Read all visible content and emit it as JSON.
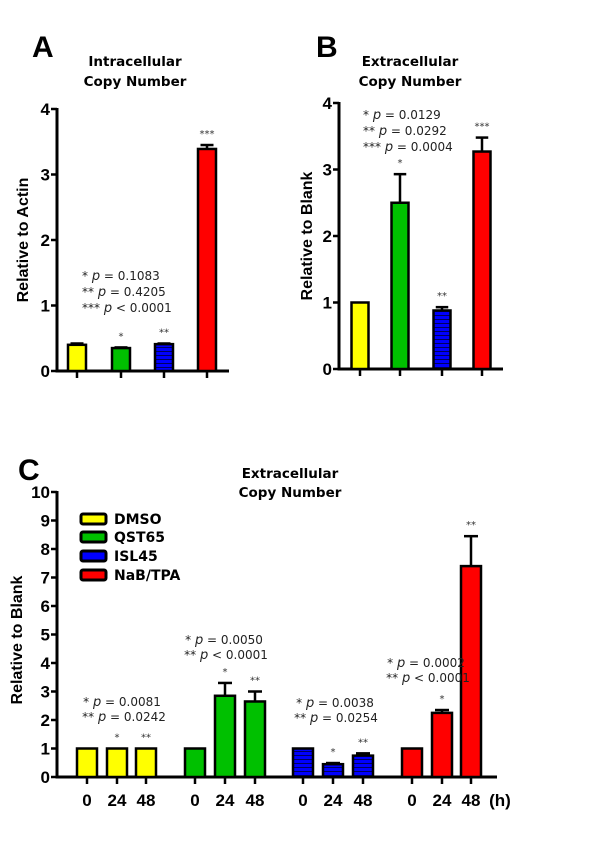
{
  "colors": {
    "DMSO": "#ffff00",
    "QST65": "#00c000",
    "ISL45": "#0000ff",
    "NaB/TPA": "#ff0000"
  },
  "chart_data": [
    {
      "panel": "A",
      "type": "bar",
      "title": [
        "Intracellular",
        "Copy Number"
      ],
      "ylabel": "Relative to Actin",
      "ylim": [
        0,
        4
      ],
      "yticks": [
        "0",
        "1",
        "2",
        "3",
        "4"
      ],
      "bars": [
        {
          "color_key": "DMSO",
          "value": 0.4,
          "error": 0.02,
          "sig": ""
        },
        {
          "color_key": "QST65",
          "value": 0.35,
          "error": 0.01,
          "sig": "*"
        },
        {
          "color_key": "ISL45",
          "value": 0.41,
          "error": 0.01,
          "sig": "**"
        },
        {
          "color_key": "NaB/TPA",
          "value": 3.39,
          "error": 0.06,
          "sig": "***"
        }
      ],
      "annotations": [
        "* p = 0.1083",
        "** p = 0.4205",
        "*** p < 0.0001"
      ]
    },
    {
      "panel": "B",
      "type": "bar",
      "title": [
        "Extracellular",
        "Copy Number"
      ],
      "ylabel": "Relative to Blank",
      "ylim": [
        0,
        4
      ],
      "yticks": [
        "0",
        "1",
        "2",
        "3",
        "4"
      ],
      "bars": [
        {
          "color_key": "DMSO",
          "value": 1.0,
          "error": 0,
          "sig": ""
        },
        {
          "color_key": "QST65",
          "value": 2.5,
          "error": 0.43,
          "sig": "*"
        },
        {
          "color_key": "ISL45",
          "value": 0.88,
          "error": 0.05,
          "sig": "**"
        },
        {
          "color_key": "NaB/TPA",
          "value": 3.27,
          "error": 0.21,
          "sig": "***"
        }
      ],
      "annotations": [
        "* p = 0.0129",
        "** p = 0.0292",
        "*** p = 0.0004"
      ]
    },
    {
      "panel": "C",
      "type": "bar",
      "title": [
        "Extracellular",
        "Copy Number"
      ],
      "ylabel": "Relative to Blank",
      "ylim": [
        0,
        10
      ],
      "yticks": [
        "0",
        "1",
        "2",
        "3",
        "4",
        "5",
        "6",
        "7",
        "8",
        "9",
        "10"
      ],
      "x_tick_labels": [
        "0",
        "24",
        "48"
      ],
      "x_unit": "(h)",
      "legend": [
        "DMSO",
        "QST65",
        "ISL45",
        "NaB/TPA"
      ],
      "legend_position": "top-left",
      "groups": [
        {
          "name": "DMSO",
          "values": [
            1,
            1,
            1
          ],
          "errors": [
            0,
            0,
            0
          ],
          "sig": [
            "",
            "*",
            "**"
          ],
          "annotations": [
            "* p = 0.0081",
            "** p = 0.0242"
          ]
        },
        {
          "name": "QST65",
          "values": [
            1,
            2.85,
            2.65
          ],
          "errors": [
            0,
            0.45,
            0.35
          ],
          "sig": [
            "",
            "*",
            "**"
          ],
          "annotations": [
            "* p = 0.0050",
            "** p < 0.0001"
          ]
        },
        {
          "name": "ISL45",
          "values": [
            1,
            0.45,
            0.75
          ],
          "errors": [
            0,
            0.04,
            0.08
          ],
          "sig": [
            "",
            "*",
            "**"
          ],
          "annotations": [
            "* p = 0.0038",
            "** p = 0.0254"
          ]
        },
        {
          "name": "NaB/TPA",
          "values": [
            1,
            2.25,
            7.4
          ],
          "errors": [
            0,
            0.1,
            1.05
          ],
          "sig": [
            "",
            "*",
            "**"
          ],
          "annotations": [
            "* p = 0.0002",
            "** p < 0.0001"
          ]
        }
      ]
    }
  ]
}
